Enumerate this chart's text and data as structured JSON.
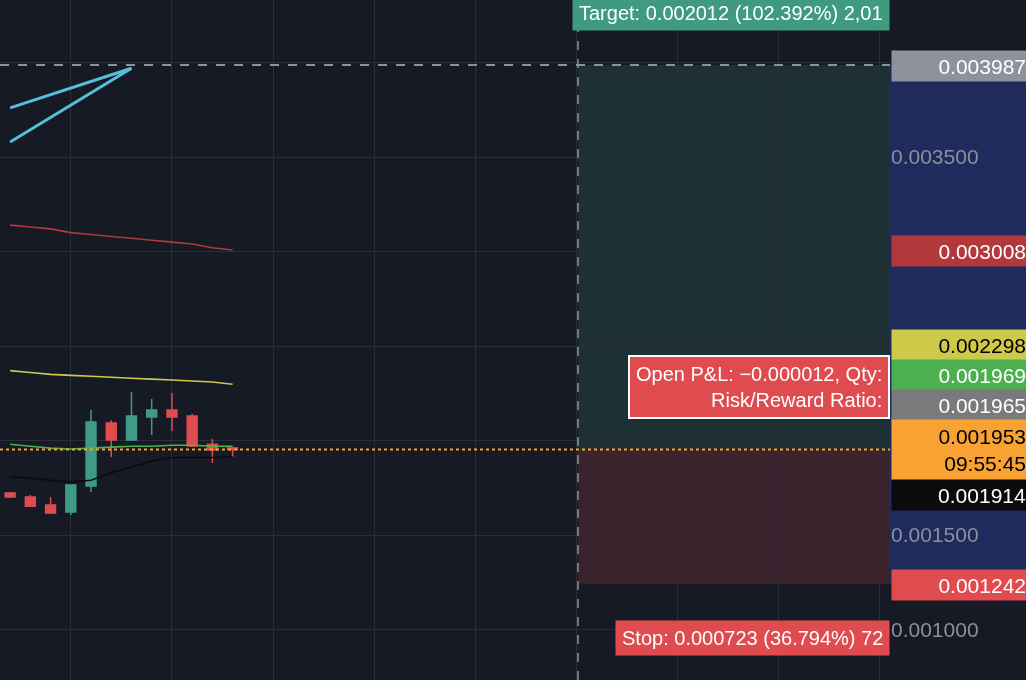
{
  "chart_data": {
    "type": "candlestick",
    "categories": [
      null,
      null,
      null,
      null,
      null,
      null,
      null,
      null,
      null,
      null,
      null,
      null,
      null,
      null,
      null,
      null,
      null,
      null,
      null,
      null,
      null,
      null,
      null,
      null,
      null,
      null,
      null,
      null,
      null,
      null,
      null,
      null,
      null,
      null,
      null,
      null,
      null,
      null,
      null,
      null,
      null,
      null,
      null,
      null
    ],
    "ohlc": [
      [
        0.001722,
        0.001728,
        0.001696,
        0.001701
      ],
      [
        0.001701,
        0.001712,
        0.001648,
        0.001653
      ],
      [
        0.001659,
        0.001701,
        0.001611,
        0.001616
      ],
      [
        0.001622,
        0.001765,
        0.001606,
        0.001765
      ],
      [
        0.001759,
        0.002161,
        0.001728,
        0.002098
      ],
      [
        0.002093,
        0.002108,
        0.001913,
        0.002003
      ],
      [
        0.002003,
        0.002257,
        0.002003,
        0.00213
      ],
      [
        0.002124,
        0.00222,
        0.002029,
        0.002161
      ],
      [
        0.002161,
        0.002251,
        0.00205,
        0.002124
      ],
      [
        0.00213,
        0.00214,
        0.001966,
        0.001971
      ],
      [
        0.001981,
        0.002008,
        0.001881,
        0.00195
      ],
      [
        0.00196,
        0.001966,
        0.001913,
        0.001953
      ],
      null,
      null,
      null,
      null,
      null,
      null,
      null,
      null,
      null,
      null,
      null,
      null,
      null,
      null,
      null,
      null,
      null,
      null,
      null,
      null,
      null,
      null,
      null,
      null,
      null,
      null,
      null,
      null,
      null,
      null,
      null,
      null
    ],
    "series": [
      {
        "type": "line",
        "color": "#b2383c",
        "values": [
          0.00314,
          0.00313,
          0.00312,
          0.0031,
          0.00309,
          0.00308,
          0.00307,
          0.00306,
          0.00305,
          0.00304,
          0.00302,
          0.003008,
          null,
          null,
          null,
          null,
          null,
          null,
          null,
          null,
          null,
          null,
          null,
          null,
          null,
          null,
          null,
          null,
          null,
          null,
          null,
          null,
          null,
          null,
          null,
          null,
          null,
          null,
          null,
          null,
          null,
          null,
          null,
          null
        ]
      },
      {
        "type": "line",
        "color": "#cfc94a",
        "values": [
          0.00237,
          0.00236,
          0.00235,
          0.002345,
          0.00234,
          0.002335,
          0.00233,
          0.002325,
          0.00232,
          0.002315,
          0.00231,
          0.002298,
          null,
          null,
          null,
          null,
          null,
          null,
          null,
          null,
          null,
          null,
          null,
          null,
          null,
          null,
          null,
          null,
          null,
          null,
          null,
          null,
          null,
          null,
          null,
          null,
          null,
          null,
          null,
          null,
          null,
          null,
          null,
          null
        ]
      },
      {
        "type": "line",
        "color": "#4caf50",
        "values": [
          0.00198,
          0.00197,
          0.00196,
          0.001955,
          0.00196,
          0.001965,
          0.00197,
          0.00197,
          0.001975,
          0.001975,
          0.00197,
          0.001969,
          null,
          null,
          null,
          null,
          null,
          null,
          null,
          null,
          null,
          null,
          null,
          null,
          null,
          null,
          null,
          null,
          null,
          null,
          null,
          null,
          null,
          null,
          null,
          null,
          null,
          null,
          null,
          null,
          null,
          null,
          null,
          null
        ]
      },
      {
        "type": "line",
        "color": "#0b0b0d",
        "values": [
          0.00181,
          0.0018,
          0.00179,
          0.00178,
          0.00179,
          0.00183,
          0.00186,
          0.00189,
          0.00191,
          0.00191,
          0.00191,
          0.001914,
          null,
          null,
          null,
          null,
          null,
          null,
          null,
          null,
          null,
          null,
          null,
          null,
          null,
          null,
          null,
          null,
          null,
          null,
          null,
          null,
          null,
          null,
          null,
          null,
          null,
          null,
          null,
          null,
          null,
          null,
          null,
          null
        ]
      },
      {
        "type": "line",
        "color": "#56bedb",
        "values": [
          0.00376,
          null,
          null,
          null,
          null,
          null,
          0.00397,
          null,
          null,
          null,
          null,
          null,
          null,
          null,
          null,
          null,
          null,
          null,
          null,
          null,
          null,
          null,
          null,
          null,
          null,
          null,
          null,
          null,
          null,
          null,
          null,
          null,
          null,
          null,
          null,
          null,
          null,
          null,
          null,
          null,
          null,
          null,
          null,
          null
        ]
      },
      {
        "type": "line",
        "color": "#56bedb",
        "values": [
          0.00358,
          null,
          null,
          null,
          null,
          null,
          0.00397,
          null,
          null,
          null,
          null,
          null,
          null,
          null,
          null,
          null,
          null,
          null,
          null,
          null,
          null,
          null,
          null,
          null,
          null,
          null,
          null,
          null,
          null,
          null,
          null,
          null,
          null,
          null,
          null,
          null,
          null,
          null,
          null,
          null,
          null,
          null,
          null,
          null
        ]
      }
    ],
    "ylim": [
      0.000733,
      0.004331
    ],
    "yticks": [
      {
        "value": 0.001,
        "label": "0.001000"
      },
      {
        "value": 0.0015,
        "label": "0.001500"
      },
      {
        "value": 0.002,
        "label": null
      },
      {
        "value": 0.0025,
        "label": null
      },
      {
        "value": 0.003,
        "label": null
      },
      {
        "value": 0.0035,
        "label": "0.003500"
      },
      {
        "value": 0.004,
        "label": null
      }
    ],
    "ref_lines": [
      {
        "axis": "y",
        "value": 0.003987,
        "label": "0.003987",
        "color": "#8f929c",
        "line_style": "dashed"
      },
      {
        "axis": "y",
        "value": 0.001953,
        "label": "0.001953\n09:55:45",
        "color": "#f7a233",
        "line_style": "dotted"
      }
    ],
    "bands": [
      {
        "axis": "y",
        "from": 0.001953,
        "to": 0.003987,
        "label": "Target: 0.002012 (102.392%) 2,01",
        "color": "#3f9a80"
      },
      {
        "axis": "y",
        "from": 0.001242,
        "to": 0.001953,
        "label": "Stop: 0.000723 (36.794%) 72",
        "color": "#e04b4f"
      }
    ],
    "annotations": [
      "Open P&L: −0.000012, Qty:\nRisk/Reward Ratio:",
      "0.003008",
      "0.002298",
      "0.001969",
      "0.001914",
      "0.001965",
      "0.001242"
    ],
    "grid": true,
    "tick_labels": "y"
  }
}
